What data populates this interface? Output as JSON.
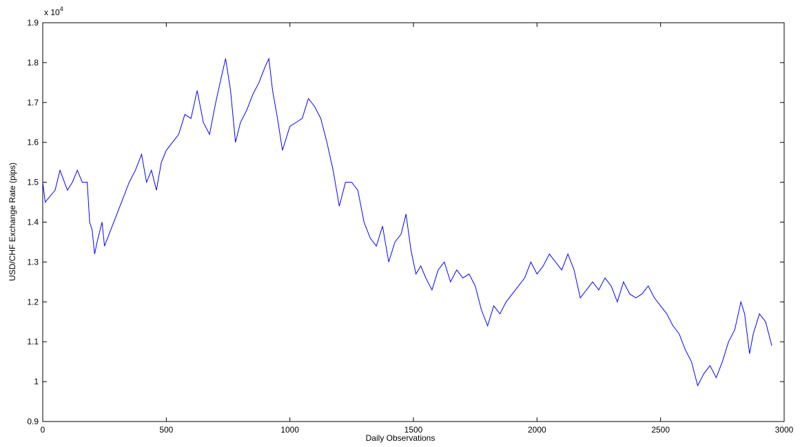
{
  "chart_data": {
    "type": "line",
    "x_label": "Daily Observations",
    "y_label": "USD/CHF Exchange Rate (pips)",
    "axis_multiplier": {
      "base": "x 10",
      "exponent": "4"
    },
    "x": [
      0,
      10,
      50,
      70,
      100,
      120,
      140,
      160,
      180,
      190,
      200,
      210,
      220,
      240,
      250,
      275,
      300,
      325,
      350,
      375,
      400,
      420,
      440,
      460,
      480,
      500,
      525,
      550,
      575,
      600,
      625,
      650,
      675,
      700,
      725,
      740,
      760,
      780,
      800,
      825,
      850,
      875,
      900,
      915,
      930,
      950,
      970,
      1000,
      1025,
      1050,
      1075,
      1100,
      1125,
      1150,
      1175,
      1200,
      1225,
      1250,
      1275,
      1300,
      1325,
      1350,
      1375,
      1400,
      1425,
      1450,
      1470,
      1490,
      1510,
      1530,
      1550,
      1575,
      1600,
      1625,
      1650,
      1675,
      1700,
      1725,
      1750,
      1775,
      1800,
      1825,
      1850,
      1875,
      1900,
      1925,
      1950,
      1975,
      2000,
      2025,
      2050,
      2075,
      2100,
      2125,
      2150,
      2175,
      2200,
      2225,
      2250,
      2275,
      2300,
      2325,
      2350,
      2375,
      2400,
      2425,
      2450,
      2475,
      2500,
      2525,
      2550,
      2575,
      2600,
      2625,
      2650,
      2675,
      2700,
      2725,
      2750,
      2775,
      2800,
      2825,
      2840,
      2860,
      2875,
      2900,
      2925,
      2950
    ],
    "series": [
      {
        "name": "USD/CHF",
        "color": "#0000ff",
        "values": [
          1.5,
          1.45,
          1.48,
          1.53,
          1.48,
          1.5,
          1.53,
          1.5,
          1.5,
          1.4,
          1.38,
          1.32,
          1.35,
          1.4,
          1.34,
          1.38,
          1.42,
          1.46,
          1.5,
          1.53,
          1.57,
          1.5,
          1.53,
          1.48,
          1.55,
          1.58,
          1.6,
          1.62,
          1.67,
          1.66,
          1.73,
          1.65,
          1.62,
          1.7,
          1.77,
          1.81,
          1.73,
          1.6,
          1.65,
          1.68,
          1.72,
          1.75,
          1.79,
          1.81,
          1.73,
          1.66,
          1.58,
          1.64,
          1.65,
          1.66,
          1.71,
          1.69,
          1.66,
          1.6,
          1.53,
          1.44,
          1.5,
          1.5,
          1.48,
          1.4,
          1.36,
          1.34,
          1.39,
          1.3,
          1.35,
          1.37,
          1.42,
          1.33,
          1.27,
          1.29,
          1.26,
          1.23,
          1.28,
          1.3,
          1.25,
          1.28,
          1.26,
          1.27,
          1.24,
          1.18,
          1.14,
          1.19,
          1.17,
          1.2,
          1.22,
          1.24,
          1.26,
          1.3,
          1.27,
          1.29,
          1.32,
          1.3,
          1.28,
          1.32,
          1.28,
          1.21,
          1.23,
          1.25,
          1.23,
          1.26,
          1.24,
          1.2,
          1.25,
          1.22,
          1.21,
          1.22,
          1.24,
          1.21,
          1.19,
          1.17,
          1.14,
          1.12,
          1.08,
          1.05,
          0.99,
          1.02,
          1.04,
          1.01,
          1.05,
          1.1,
          1.13,
          1.2,
          1.17,
          1.07,
          1.12,
          1.17,
          1.15,
          1.09
        ]
      }
    ],
    "xlim": [
      0,
      3000
    ],
    "xticks": [
      0,
      500,
      1000,
      1500,
      2000,
      2500,
      3000
    ],
    "ylim": [
      0.9,
      1.9
    ],
    "yticks": [
      0.9,
      1,
      1.1,
      1.2,
      1.3,
      1.4,
      1.5,
      1.6,
      1.7,
      1.8,
      1.9
    ],
    "grid": false
  }
}
